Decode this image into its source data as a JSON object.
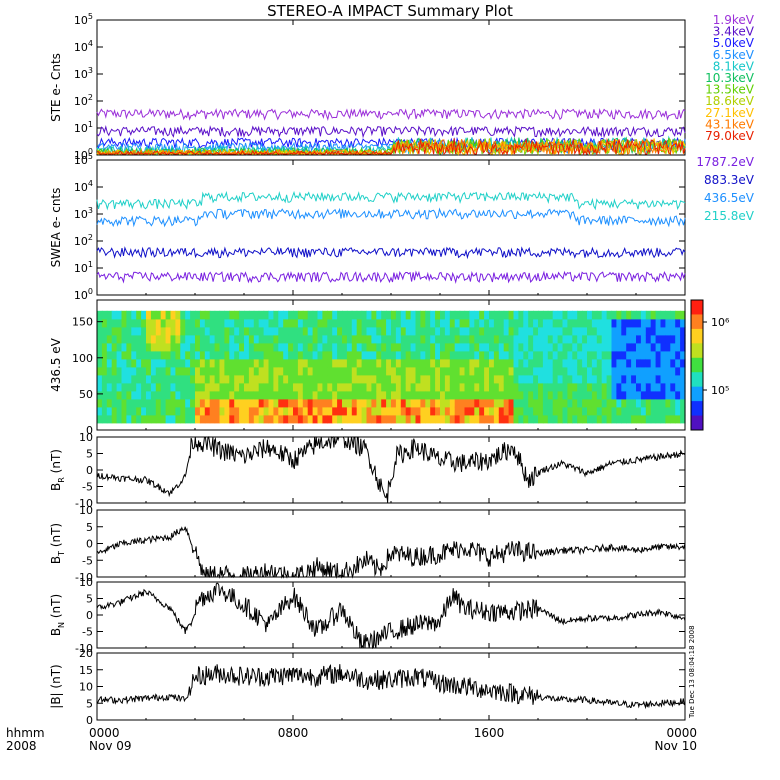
{
  "chart_data": {
    "type": "line",
    "title": "STEREO-A IMPACT Summary Plot",
    "x_axis": {
      "range_hours": [
        0,
        24
      ],
      "tick_labels": [
        "0000",
        "0800",
        "1600",
        "0000"
      ],
      "date_labels": [
        "Nov 09",
        "Nov 10"
      ],
      "row_labels": [
        "hhmm",
        "2008"
      ]
    },
    "timestamp": "Tue Dec 13 08:04:18 2008",
    "panels": [
      {
        "id": "ste",
        "ylabel": "STE e- Cnts",
        "scale": "log",
        "ylim_exp": [
          0,
          5
        ],
        "tick_exps": [
          0,
          1,
          2,
          3,
          4,
          5
        ],
        "series": [
          {
            "name": "1.9keV",
            "color": "#9b30d9",
            "level": 35
          },
          {
            "name": "3.4keV",
            "color": "#5a10c8",
            "level": 8
          },
          {
            "name": "5.0keV",
            "color": "#1a1aff",
            "level": 3
          },
          {
            "name": "6.5keV",
            "color": "#1e90ff",
            "level": 2
          },
          {
            "name": "8.1keV",
            "color": "#17c8c8",
            "level": 1.5
          },
          {
            "name": "10.3keV",
            "color": "#10c060",
            "level": 1.3
          },
          {
            "name": "13.5keV",
            "color": "#60d000",
            "level": 1.2
          },
          {
            "name": "18.6keV",
            "color": "#b0d000",
            "level": 1.1
          },
          {
            "name": "27.1keV",
            "color": "#ffc000",
            "level": 1.1
          },
          {
            "name": "43.1keV",
            "color": "#ff7a00",
            "level": 1.1
          },
          {
            "name": "79.0keV",
            "color": "#e82000",
            "level": 1.0
          }
        ]
      },
      {
        "id": "swea",
        "ylabel": "SWEA e- cnts",
        "scale": "log",
        "ylim_exp": [
          0,
          5
        ],
        "tick_exps": [
          0,
          1,
          2,
          3,
          4,
          5
        ],
        "series": [
          {
            "name": "1787.2eV",
            "color": "#7a20e0",
            "level": 5
          },
          {
            "name": "883.3eV",
            "color": "#1010c8",
            "level": 40
          },
          {
            "name": "436.5eV",
            "color": "#1e90ff",
            "level": 600
          },
          {
            "name": "215.8eV",
            "color": "#20d0c8",
            "level": 2500
          }
        ]
      },
      {
        "id": "pad",
        "ylabel": "436.5 eV",
        "type": "heatmap",
        "ylim": [
          0,
          180
        ],
        "ticks": [
          0,
          50,
          100,
          150
        ],
        "colorbar": {
          "tick_labels": [
            "10⁶",
            "10⁵"
          ],
          "tick_values": [
            1000000,
            100000
          ]
        }
      },
      {
        "id": "br",
        "ylabel": "B_R (nT)",
        "label_main": "B",
        "label_sub": "R",
        "label_unit": "(nT)",
        "ylim": [
          -10,
          10
        ],
        "ticks": [
          -10,
          -5,
          0,
          5,
          10
        ],
        "keypoints": [
          [
            0,
            -1.5
          ],
          [
            1,
            -2.5
          ],
          [
            2,
            -3
          ],
          [
            3,
            -7
          ],
          [
            3.6,
            -2
          ],
          [
            3.9,
            9
          ],
          [
            4.5,
            8
          ],
          [
            5,
            6
          ],
          [
            6,
            4
          ],
          [
            7,
            7
          ],
          [
            8,
            3
          ],
          [
            9,
            8
          ],
          [
            10,
            10
          ],
          [
            11,
            6
          ],
          [
            11.8,
            -9
          ],
          [
            12.2,
            4
          ],
          [
            13,
            7
          ],
          [
            14,
            3
          ],
          [
            15,
            2
          ],
          [
            16,
            3
          ],
          [
            17,
            7
          ],
          [
            17.6,
            -3
          ],
          [
            18.2,
            0
          ],
          [
            19,
            2
          ],
          [
            20,
            -1
          ],
          [
            21,
            2
          ],
          [
            22,
            3
          ],
          [
            23,
            4
          ],
          [
            24,
            5
          ]
        ]
      },
      {
        "id": "bt",
        "ylabel": "B_T (nT)",
        "label_main": "B",
        "label_sub": "T",
        "label_unit": "(nT)",
        "ylim": [
          -10,
          10
        ],
        "ticks": [
          -10,
          -5,
          0,
          5,
          10
        ],
        "keypoints": [
          [
            0,
            -3
          ],
          [
            1,
            0
          ],
          [
            2,
            1
          ],
          [
            3,
            2
          ],
          [
            3.6,
            5
          ],
          [
            4,
            -2
          ],
          [
            4.4,
            -10
          ],
          [
            5,
            -9
          ],
          [
            6,
            -10
          ],
          [
            7,
            -8
          ],
          [
            8,
            -10
          ],
          [
            9,
            -7
          ],
          [
            10,
            -9
          ],
          [
            11,
            -5
          ],
          [
            11.5,
            -8
          ],
          [
            12,
            -3
          ],
          [
            13,
            -4
          ],
          [
            14,
            -3
          ],
          [
            15,
            -1
          ],
          [
            16,
            -4
          ],
          [
            17,
            -2
          ],
          [
            18,
            -3
          ],
          [
            19,
            -2
          ],
          [
            20,
            -2
          ],
          [
            21,
            -1
          ],
          [
            22,
            -2
          ],
          [
            23,
            -1
          ],
          [
            24,
            -1
          ]
        ]
      },
      {
        "id": "bn",
        "ylabel": "B_N (nT)",
        "label_main": "B",
        "label_sub": "N",
        "label_unit": "(nT)",
        "ylim": [
          -10,
          10
        ],
        "ticks": [
          -10,
          -5,
          0,
          5,
          10
        ],
        "keypoints": [
          [
            0,
            2
          ],
          [
            1,
            4
          ],
          [
            2,
            7
          ],
          [
            3,
            2
          ],
          [
            3.6,
            -5
          ],
          [
            4.2,
            5
          ],
          [
            5,
            8
          ],
          [
            6,
            3
          ],
          [
            7,
            -3
          ],
          [
            8,
            6
          ],
          [
            9,
            -5
          ],
          [
            10,
            2
          ],
          [
            10.8,
            -9
          ],
          [
            11.5,
            -7
          ],
          [
            12,
            -5
          ],
          [
            13,
            -3
          ],
          [
            14,
            -2
          ],
          [
            14.5,
            6
          ],
          [
            15,
            2
          ],
          [
            16,
            1
          ],
          [
            17,
            1
          ],
          [
            18,
            2
          ],
          [
            19,
            -2
          ],
          [
            20,
            -1
          ],
          [
            21,
            -1
          ],
          [
            22,
            0
          ],
          [
            23,
            1
          ],
          [
            24,
            -1
          ]
        ]
      },
      {
        "id": "bmag",
        "ylabel": "|B| (nT)",
        "label_main": "|B|",
        "label_sub": "",
        "label_unit": "(nT)",
        "ylim": [
          0,
          20
        ],
        "ticks": [
          0,
          5,
          10,
          15,
          20
        ],
        "keypoints": [
          [
            0,
            6
          ],
          [
            1,
            6
          ],
          [
            2,
            6.5
          ],
          [
            3,
            7
          ],
          [
            3.6,
            6
          ],
          [
            4,
            13
          ],
          [
            5,
            14
          ],
          [
            6,
            13
          ],
          [
            7,
            13
          ],
          [
            8,
            13.5
          ],
          [
            9,
            13
          ],
          [
            10,
            14
          ],
          [
            11,
            12
          ],
          [
            12,
            12
          ],
          [
            13,
            13
          ],
          [
            14,
            11
          ],
          [
            15,
            10
          ],
          [
            16,
            9
          ],
          [
            17,
            8
          ],
          [
            18,
            7
          ],
          [
            19,
            6
          ],
          [
            20,
            6
          ],
          [
            21,
            5
          ],
          [
            22,
            4.5
          ],
          [
            23,
            5
          ],
          [
            24,
            5.5
          ]
        ]
      }
    ]
  }
}
